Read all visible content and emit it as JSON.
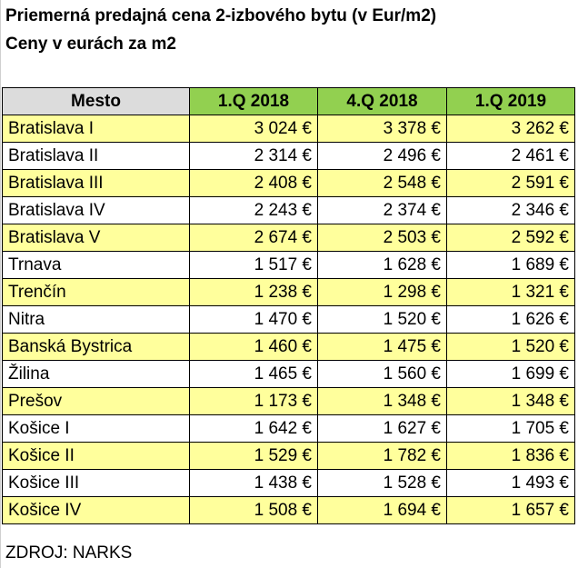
{
  "title": "Priemerná predajná cena 2-izbového bytu (v Eur/m2)",
  "subtitle": "Ceny v eurách za m2",
  "table": {
    "headers": [
      "Mesto",
      "1.Q 2018",
      "4.Q 2018",
      "1.Q 2019"
    ],
    "rows": [
      {
        "city": "Bratislava I",
        "q1_2018": "3 024 €",
        "q4_2018": "3 378 €",
        "q1_2019": "3 262 €"
      },
      {
        "city": "Bratislava II",
        "q1_2018": "2 314 €",
        "q4_2018": "2 496 €",
        "q1_2019": "2 461 €"
      },
      {
        "city": "Bratislava III",
        "q1_2018": "2 408 €",
        "q4_2018": "2 548 €",
        "q1_2019": "2 591 €"
      },
      {
        "city": "Bratislava IV",
        "q1_2018": "2 243 €",
        "q4_2018": "2 374 €",
        "q1_2019": "2 346 €"
      },
      {
        "city": "Bratislava V",
        "q1_2018": "2 674 €",
        "q4_2018": "2 503 €",
        "q1_2019": "2 592 €"
      },
      {
        "city": "Trnava",
        "q1_2018": "1 517 €",
        "q4_2018": "1 628 €",
        "q1_2019": "1 689 €"
      },
      {
        "city": "Trenčín",
        "q1_2018": "1 238 €",
        "q4_2018": "1 298 €",
        "q1_2019": "1 321 €"
      },
      {
        "city": "Nitra",
        "q1_2018": "1 470 €",
        "q4_2018": "1 520 €",
        "q1_2019": "1 626 €"
      },
      {
        "city": "Banská Bystrica",
        "q1_2018": "1 460 €",
        "q4_2018": "1 475 €",
        "q1_2019": "1 520 €"
      },
      {
        "city": "Žilina",
        "q1_2018": "1 465 €",
        "q4_2018": "1 560 €",
        "q1_2019": "1 699 €"
      },
      {
        "city": "Prešov",
        "q1_2018": "1 173 €",
        "q4_2018": "1 348 €",
        "q1_2019": "1 348 €"
      },
      {
        "city": "Košice I",
        "q1_2018": "1 642 €",
        "q4_2018": "1 627 €",
        "q1_2019": "1 705 €"
      },
      {
        "city": "Košice II",
        "q1_2018": "1 529 €",
        "q4_2018": "1 782 €",
        "q1_2019": "1 836 €"
      },
      {
        "city": "Košice III",
        "q1_2018": "1 438 €",
        "q4_2018": "1 528 €",
        "q1_2019": "1 493 €"
      },
      {
        "city": "Košice IV",
        "q1_2018": "1 508 €",
        "q4_2018": "1 694 €",
        "q1_2019": "1 657 €"
      }
    ]
  },
  "source": "ZDROJ: NARKS",
  "colors": {
    "header_green": "#92d050",
    "header_gray": "#dcdcdc",
    "row_highlight": "#ffff9c"
  }
}
